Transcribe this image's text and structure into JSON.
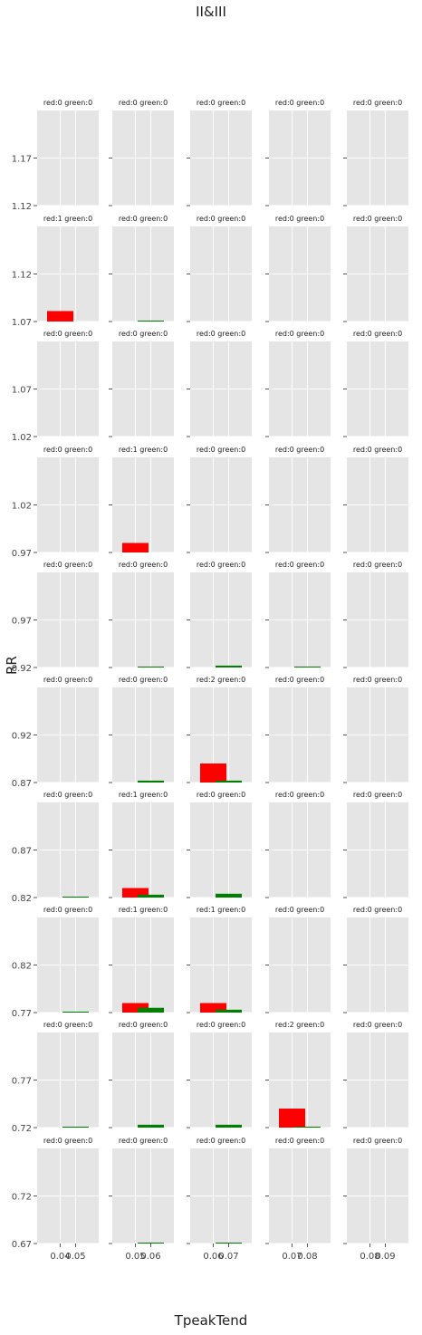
{
  "figure": {
    "suptitle": "II&III",
    "ylabel": "RR",
    "xlabel": "TpeakTend"
  },
  "colors": {
    "panel_bg": "#e5e5e5",
    "grid": "#ffffff",
    "red": "#ff0000",
    "green": "#008000"
  },
  "chart_data": {
    "type": "bar",
    "layout": "grid 10 rows x 5 columns",
    "grid": true,
    "columns": [
      {
        "xticks": [
          "0.04",
          "0.05"
        ],
        "bar_x": {
          "red": 0.04,
          "green": 0.05
        }
      },
      {
        "xticks": [
          "0.05",
          "0.06"
        ],
        "bar_x": {
          "red": 0.05,
          "green": 0.06
        }
      },
      {
        "xticks": [
          "0.06",
          "0.07"
        ],
        "bar_x": {
          "red": 0.06,
          "green": 0.07
        }
      },
      {
        "xticks": [
          "0.07",
          "0.08"
        ],
        "bar_x": {
          "red": 0.07,
          "green": 0.08
        }
      },
      {
        "xticks": [
          "0.08",
          "0.09"
        ],
        "bar_x": {
          "red": 0.08,
          "green": 0.09
        }
      }
    ],
    "rows": [
      {
        "ylim": [
          1.12,
          1.22
        ],
        "yticks": [
          "1.12",
          "1.17"
        ],
        "panels": [
          {
            "title": "red:0 green:0",
            "red": 0,
            "green": 0
          },
          {
            "title": "red:0 green:0",
            "red": 0,
            "green": 0
          },
          {
            "title": "red:0 green:0",
            "red": 0,
            "green": 0
          },
          {
            "title": "red:0 green:0",
            "red": 0,
            "green": 0
          },
          {
            "title": "red:0 green:0",
            "red": 0,
            "green": 0
          }
        ]
      },
      {
        "ylim": [
          1.07,
          1.17
        ],
        "yticks": [
          "1.07",
          "1.12"
        ],
        "panels": [
          {
            "title": "red:1 green:0",
            "red": 0.011,
            "green": 0
          },
          {
            "title": "red:0 green:0",
            "red": 0,
            "green": 0.001
          },
          {
            "title": "red:0 green:0",
            "red": 0,
            "green": 0
          },
          {
            "title": "red:0 green:0",
            "red": 0,
            "green": 0
          },
          {
            "title": "red:0 green:0",
            "red": 0,
            "green": 0
          }
        ]
      },
      {
        "ylim": [
          1.02,
          1.12
        ],
        "yticks": [
          "1.02",
          "1.07"
        ],
        "panels": [
          {
            "title": "red:0 green:0",
            "red": 0,
            "green": 0
          },
          {
            "title": "red:0 green:0",
            "red": 0,
            "green": 0
          },
          {
            "title": "red:0 green:0",
            "red": 0,
            "green": 0
          },
          {
            "title": "red:0 green:0",
            "red": 0,
            "green": 0
          },
          {
            "title": "red:0 green:0",
            "red": 0,
            "green": 0
          }
        ]
      },
      {
        "ylim": [
          0.97,
          1.07
        ],
        "yticks": [
          "0.97",
          "1.02"
        ],
        "panels": [
          {
            "title": "red:0 green:0",
            "red": 0,
            "green": 0
          },
          {
            "title": "red:1 green:0",
            "red": 0.01,
            "green": 0
          },
          {
            "title": "red:0 green:0",
            "red": 0,
            "green": 0
          },
          {
            "title": "red:0 green:0",
            "red": 0,
            "green": 0
          },
          {
            "title": "red:0 green:0",
            "red": 0,
            "green": 0
          }
        ]
      },
      {
        "ylim": [
          0.92,
          1.02
        ],
        "yticks": [
          "0.92",
          "0.97"
        ],
        "panels": [
          {
            "title": "red:0 green:0",
            "red": 0,
            "green": 0
          },
          {
            "title": "red:0 green:0",
            "red": 0,
            "green": 0.001
          },
          {
            "title": "red:0 green:0",
            "red": 0,
            "green": 0.002
          },
          {
            "title": "red:0 green:0",
            "red": 0,
            "green": 0.001
          },
          {
            "title": "red:0 green:0",
            "red": 0,
            "green": 0
          }
        ]
      },
      {
        "ylim": [
          0.87,
          0.97
        ],
        "yticks": [
          "0.87",
          "0.92"
        ],
        "panels": [
          {
            "title": "red:0 green:0",
            "red": 0,
            "green": 0
          },
          {
            "title": "red:0 green:0",
            "red": 0,
            "green": 0.002
          },
          {
            "title": "red:2 green:0",
            "red": 0.02,
            "green": 0.002
          },
          {
            "title": "red:0 green:0",
            "red": 0,
            "green": 0
          },
          {
            "title": "red:0 green:0",
            "red": 0,
            "green": 0
          }
        ]
      },
      {
        "ylim": [
          0.82,
          0.92
        ],
        "yticks": [
          "0.82",
          "0.87"
        ],
        "panels": [
          {
            "title": "red:0 green:0",
            "red": 0,
            "green": 0.001
          },
          {
            "title": "red:1 green:0",
            "red": 0.01,
            "green": 0.003
          },
          {
            "title": "red:0 green:0",
            "red": 0,
            "green": 0.004
          },
          {
            "title": "red:0 green:0",
            "red": 0,
            "green": 0
          },
          {
            "title": "red:0 green:0",
            "red": 0,
            "green": 0
          }
        ]
      },
      {
        "ylim": [
          0.77,
          0.87
        ],
        "yticks": [
          "0.77",
          "0.82"
        ],
        "panels": [
          {
            "title": "red:0 green:0",
            "red": 0,
            "green": 0.001
          },
          {
            "title": "red:1 green:0",
            "red": 0.01,
            "green": 0.005
          },
          {
            "title": "red:1 green:0",
            "red": 0.01,
            "green": 0.003
          },
          {
            "title": "red:0 green:0",
            "red": 0,
            "green": 0
          },
          {
            "title": "red:0 green:0",
            "red": 0,
            "green": 0
          }
        ]
      },
      {
        "ylim": [
          0.72,
          0.82
        ],
        "yticks": [
          "0.72",
          "0.77"
        ],
        "panels": [
          {
            "title": "red:0 green:0",
            "red": 0,
            "green": 0.001
          },
          {
            "title": "red:0 green:0",
            "red": 0,
            "green": 0.003
          },
          {
            "title": "red:0 green:0",
            "red": 0,
            "green": 0.003
          },
          {
            "title": "red:2 green:0",
            "red": 0.02,
            "green": 0.001
          },
          {
            "title": "red:0 green:0",
            "red": 0,
            "green": 0
          }
        ]
      },
      {
        "ylim": [
          0.67,
          0.77
        ],
        "yticks": [
          "0.67",
          "0.72"
        ],
        "panels": [
          {
            "title": "red:0 green:0",
            "red": 0,
            "green": 0
          },
          {
            "title": "red:0 green:0",
            "red": 0,
            "green": 0.001
          },
          {
            "title": "red:0 green:0",
            "red": 0,
            "green": 0.001
          },
          {
            "title": "red:0 green:0",
            "red": 0,
            "green": 0
          },
          {
            "title": "red:0 green:0",
            "red": 0,
            "green": 0
          }
        ]
      }
    ]
  }
}
